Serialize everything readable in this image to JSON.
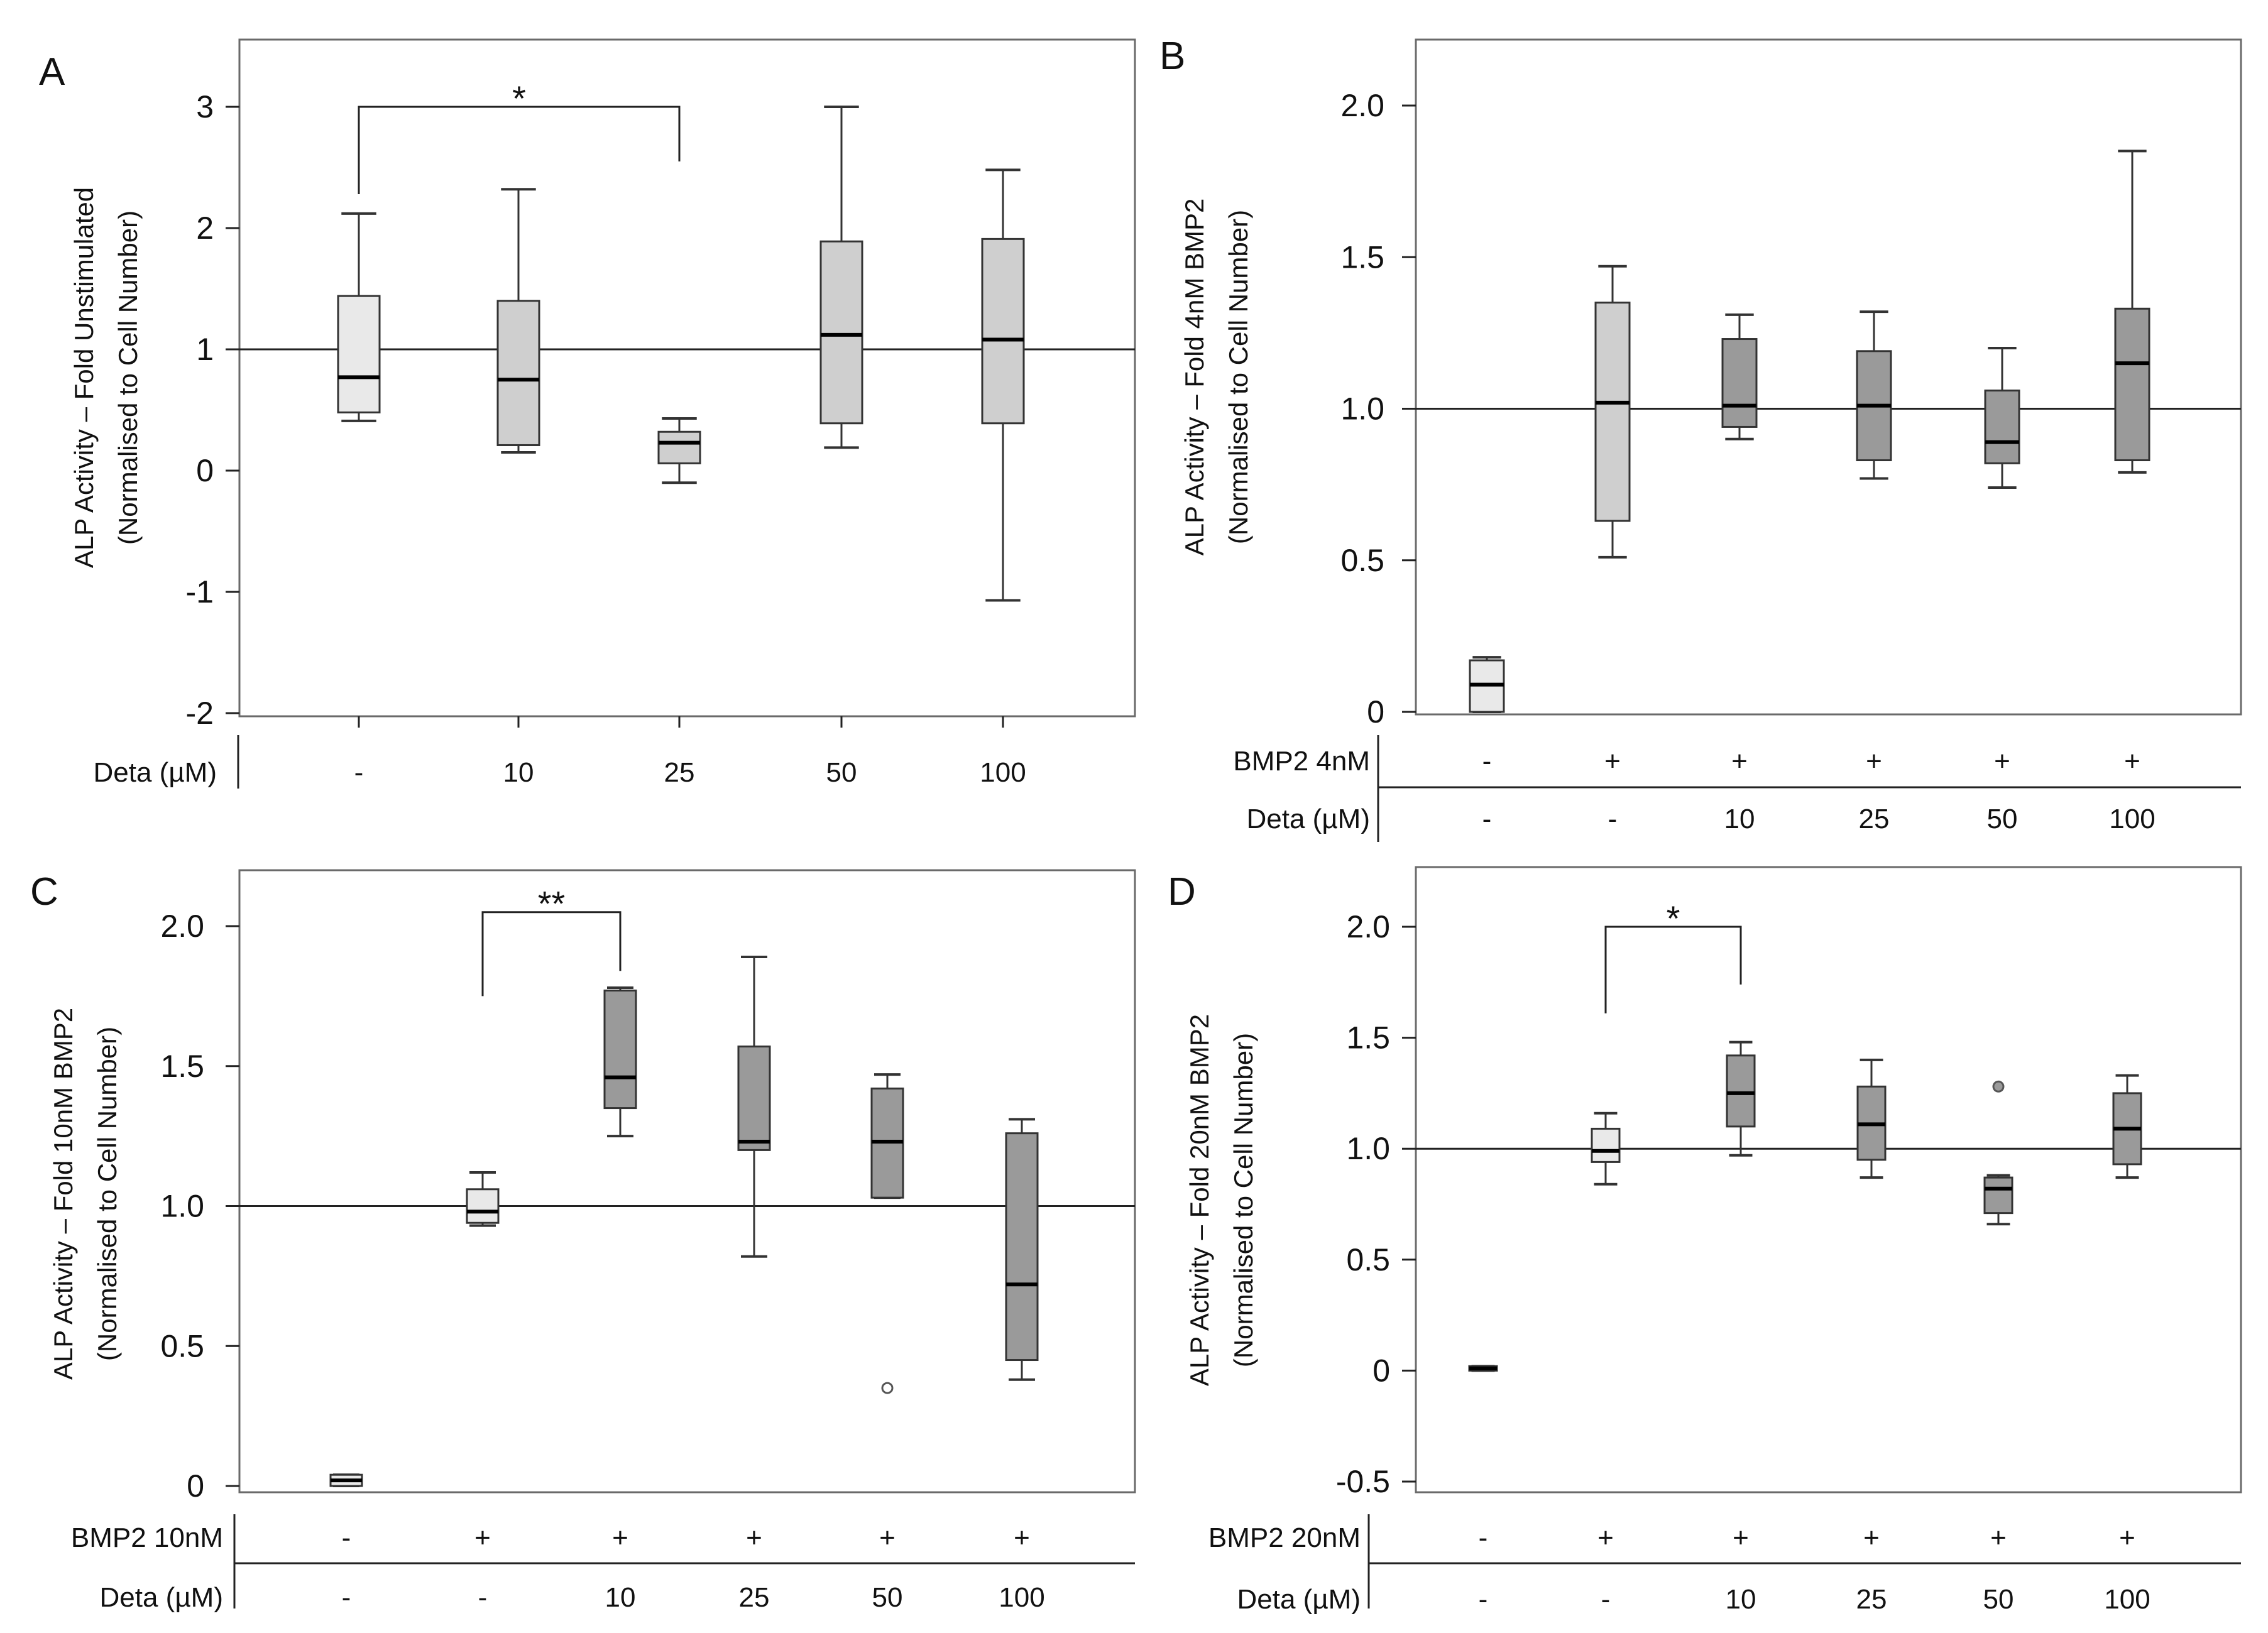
{
  "figure": "ALP activity box plots, four panels",
  "chart_data": [
    {
      "panel": "A",
      "type": "box",
      "ylabel_line1": "ALP Activity – Fold Unstimulated",
      "ylabel_line2": "(Normalised to Cell Number)",
      "ylim": [
        -2,
        3.5
      ],
      "yticks": [
        -2,
        -1,
        0,
        1,
        2,
        3
      ],
      "ytick_labels": [
        "-2",
        "-1",
        "0",
        "1",
        "2",
        "3"
      ],
      "reference_line": 1,
      "rows": [
        {
          "label": "Deta (µM)",
          "values": [
            "-",
            "10",
            "25",
            "50",
            "100"
          ]
        }
      ],
      "boxes": [
        {
          "shade": "light",
          "min": 0.41,
          "q1": 0.48,
          "median": 0.77,
          "q3": 1.44,
          "max": 2.12
        },
        {
          "shade": "mid",
          "min": 0.15,
          "q1": 0.21,
          "median": 0.75,
          "q3": 1.4,
          "max": 2.32
        },
        {
          "shade": "mid",
          "min": -0.1,
          "q1": 0.06,
          "median": 0.23,
          "q3": 0.32,
          "max": 0.43
        },
        {
          "shade": "mid",
          "min": 0.19,
          "q1": 0.39,
          "median": 1.12,
          "q3": 1.89,
          "max": 3.0
        },
        {
          "shade": "mid",
          "min": -1.07,
          "q1": 0.39,
          "median": 1.08,
          "q3": 1.91,
          "max": 2.48
        }
      ],
      "significance": [
        {
          "from": 0,
          "to": 2,
          "label": "*",
          "y": 3.0,
          "left_drop": 2.28,
          "right_drop": 2.55
        }
      ]
    },
    {
      "panel": "B",
      "type": "box",
      "ylabel_line1": "ALP Activity – Fold 4nM BMP2",
      "ylabel_line2": "(Normalised to Cell Number)",
      "ylim": [
        0,
        2.2
      ],
      "yticks": [
        0,
        0.5,
        1.0,
        1.5,
        2.0
      ],
      "ytick_labels": [
        "0",
        "0.5",
        "1.0",
        "1.5",
        "2.0"
      ],
      "reference_line": 1.0,
      "rows": [
        {
          "label": "BMP2 4nM",
          "values": [
            "-",
            "+",
            "+",
            "+",
            "+",
            "+"
          ]
        },
        {
          "label": "Deta (µM)",
          "values": [
            "-",
            "-",
            "10",
            "25",
            "50",
            "100"
          ]
        }
      ],
      "boxes": [
        {
          "shade": "light",
          "min": 0.0,
          "q1": 0.0,
          "median": 0.09,
          "q3": 0.17,
          "max": 0.18
        },
        {
          "shade": "mid",
          "min": 0.51,
          "q1": 0.63,
          "median": 1.02,
          "q3": 1.35,
          "max": 1.47
        },
        {
          "shade": "dark",
          "min": 0.9,
          "q1": 0.94,
          "median": 1.01,
          "q3": 1.23,
          "max": 1.31
        },
        {
          "shade": "dark",
          "min": 0.77,
          "q1": 0.83,
          "median": 1.01,
          "q3": 1.19,
          "max": 1.32
        },
        {
          "shade": "dark",
          "min": 0.74,
          "q1": 0.82,
          "median": 0.89,
          "q3": 1.06,
          "max": 1.2
        },
        {
          "shade": "dark",
          "min": 0.79,
          "q1": 0.83,
          "median": 1.15,
          "q3": 1.33,
          "max": 1.85
        }
      ],
      "significance": []
    },
    {
      "panel": "C",
      "type": "box",
      "ylabel_line1": "ALP Activity – Fold 10nM BMP2",
      "ylabel_line2": "(Normalised to Cell Number)",
      "ylim": [
        0,
        2.2
      ],
      "yticks": [
        0,
        0.5,
        1.0,
        1.5,
        2.0
      ],
      "ytick_labels": [
        "0",
        "0.5",
        "1.0",
        "1.5",
        "2.0"
      ],
      "reference_line": 1.0,
      "rows": [
        {
          "label": "BMP2 10nM",
          "values": [
            "-",
            "+",
            "+",
            "+",
            "+",
            "+"
          ]
        },
        {
          "label": "Deta (µM)",
          "values": [
            "-",
            "-",
            "10",
            "25",
            "50",
            "100"
          ]
        }
      ],
      "boxes": [
        {
          "shade": "light",
          "min": 0.0,
          "q1": 0.0,
          "median": 0.02,
          "q3": 0.04,
          "max": 0.04
        },
        {
          "shade": "light",
          "min": 0.93,
          "q1": 0.94,
          "median": 0.98,
          "q3": 1.06,
          "max": 1.12
        },
        {
          "shade": "dark",
          "min": 1.25,
          "q1": 1.35,
          "median": 1.46,
          "q3": 1.77,
          "max": 1.78
        },
        {
          "shade": "dark",
          "min": 0.82,
          "q1": 1.2,
          "median": 1.23,
          "q3": 1.57,
          "max": 1.89
        },
        {
          "shade": "dark",
          "min": 1.03,
          "q1": 1.03,
          "median": 1.23,
          "q3": 1.42,
          "max": 1.47,
          "outliers": [
            0.35
          ]
        },
        {
          "shade": "dark",
          "min": 0.38,
          "q1": 0.45,
          "median": 0.72,
          "q3": 1.26,
          "max": 1.31
        }
      ],
      "significance": [
        {
          "from": 1,
          "to": 2,
          "label": "**",
          "y": 2.05,
          "left_drop": 1.75,
          "right_drop": 1.84
        }
      ]
    },
    {
      "panel": "D",
      "type": "box",
      "ylabel_line1": "ALP Activity – Fold 20nM BMP2",
      "ylabel_line2": "(Normalised to Cell Number)",
      "ylim": [
        -0.5,
        2.2
      ],
      "yticks": [
        -0.5,
        0,
        0.5,
        1.0,
        1.5,
        2.0
      ],
      "ytick_labels": [
        "-0.5",
        "0",
        "0.5",
        "1.0",
        "1.5",
        "2.0"
      ],
      "reference_line": 1.0,
      "rows": [
        {
          "label": "BMP2 20nM",
          "values": [
            "-",
            "+",
            "+",
            "+",
            "+",
            "+"
          ]
        },
        {
          "label": "Deta (µM)",
          "values": [
            "-",
            "-",
            "10",
            "25",
            "50",
            "100"
          ]
        }
      ],
      "boxes": [
        {
          "shade": "dark",
          "min": 0.0,
          "q1": 0.0,
          "median": 0.01,
          "q3": 0.02,
          "max": 0.02
        },
        {
          "shade": "light",
          "min": 0.84,
          "q1": 0.94,
          "median": 0.99,
          "q3": 1.09,
          "max": 1.16
        },
        {
          "shade": "dark",
          "min": 0.97,
          "q1": 1.1,
          "median": 1.25,
          "q3": 1.42,
          "max": 1.48
        },
        {
          "shade": "dark",
          "min": 0.87,
          "q1": 0.95,
          "median": 1.11,
          "q3": 1.28,
          "max": 1.4
        },
        {
          "shade": "dark",
          "min": 0.66,
          "q1": 0.71,
          "median": 0.82,
          "q3": 0.87,
          "max": 0.88,
          "outliers": [
            1.28
          ]
        },
        {
          "shade": "dark",
          "min": 0.87,
          "q1": 0.93,
          "median": 1.09,
          "q3": 1.25,
          "max": 1.33
        }
      ],
      "significance": [
        {
          "from": 1,
          "to": 2,
          "label": "*",
          "y": 2.0,
          "left_drop": 1.61,
          "right_drop": 1.74
        }
      ]
    }
  ],
  "colors": {
    "light": "#e9e9e9",
    "mid": "#cfcfcf",
    "dark": "#9a9a9a",
    "stroke": "#333333",
    "frame": "#6a6a6a",
    "axis": "#222222"
  }
}
